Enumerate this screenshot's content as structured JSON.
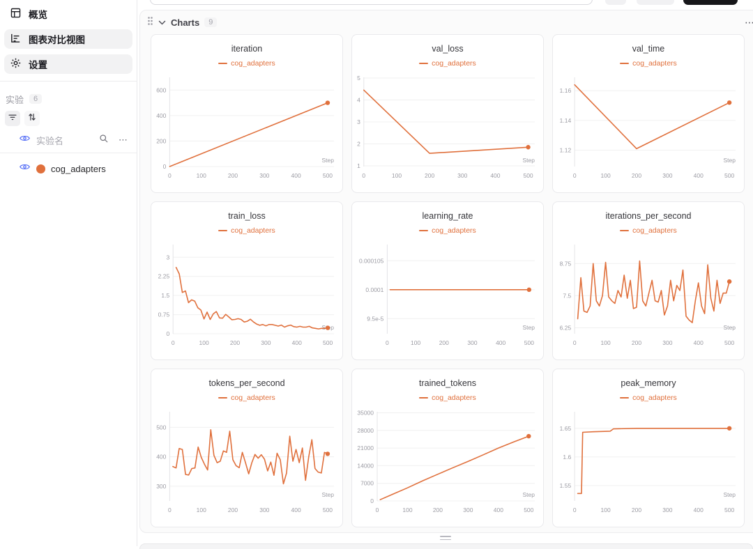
{
  "colors": {
    "accent_orange": "#E0703C",
    "eye_blue": "#4E68F6",
    "grid_line": "#f0f0f0",
    "axis_line": "#e4e4e7"
  },
  "sidebar": {
    "nav_items": [
      {
        "label": "概览",
        "active": false
      },
      {
        "label": "图表对比视图",
        "active": true
      },
      {
        "label": "设置",
        "active": true
      }
    ],
    "experiments_label": "实验",
    "experiments_count": "6",
    "name_column_label": "实验名",
    "experiments": [
      {
        "name": "cog_adapters",
        "color": "#E0703C"
      }
    ]
  },
  "main": {
    "charts_section": {
      "title": "Charts",
      "count": "9",
      "more_label": "⋯"
    }
  },
  "chart_data": [
    {
      "type": "line",
      "title": "iteration",
      "legend": "cog_adapters",
      "series_color": "#E0703C",
      "xlabel": "Step",
      "xticks": [
        0,
        100,
        200,
        300,
        400,
        500
      ],
      "xlim": [
        0,
        520
      ],
      "yticks": [
        0,
        200,
        400,
        600
      ],
      "ytick_labels": [
        "0",
        "200",
        "400",
        "600"
      ],
      "ylim": [
        0,
        700
      ],
      "x": [
        0,
        500
      ],
      "y": [
        0,
        500
      ]
    },
    {
      "type": "line",
      "title": "val_loss",
      "legend": "cog_adapters",
      "series_color": "#E0703C",
      "xlabel": "Step",
      "xticks": [
        0,
        100,
        200,
        300,
        400,
        500
      ],
      "xlim": [
        0,
        520
      ],
      "yticks": [
        1,
        2,
        3,
        4,
        5
      ],
      "ytick_labels": [
        "1",
        "2",
        "3",
        "4",
        "5"
      ],
      "ylim": [
        0.97,
        5.03
      ],
      "x": [
        0,
        200,
        500
      ],
      "y": [
        4.45,
        1.57,
        1.85
      ]
    },
    {
      "type": "line",
      "title": "val_time",
      "legend": "cog_adapters",
      "series_color": "#E0703C",
      "xlabel": "Step",
      "xticks": [
        0,
        100,
        200,
        300,
        400,
        500
      ],
      "xlim": [
        0,
        520
      ],
      "yticks": [
        1.12,
        1.14,
        1.16
      ],
      "ytick_labels": [
        "1.12",
        "1.14",
        "1.16"
      ],
      "ylim": [
        1.109,
        1.169
      ],
      "x": [
        0,
        200,
        500
      ],
      "y": [
        1.164,
        1.121,
        1.152
      ]
    },
    {
      "type": "line",
      "title": "train_loss",
      "legend": "cog_adapters",
      "series_color": "#E0703C",
      "xlabel": "Step",
      "xticks": [
        0,
        100,
        200,
        300,
        400,
        500
      ],
      "xlim": [
        0,
        520
      ],
      "yticks": [
        0,
        0.75,
        1.5,
        2.25,
        3
      ],
      "ytick_labels": [
        "0",
        "0.75",
        "1.5",
        "2.25",
        "3"
      ],
      "ylim": [
        0,
        3.5
      ],
      "x": [
        10,
        20,
        30,
        40,
        50,
        60,
        70,
        80,
        90,
        100,
        110,
        120,
        130,
        140,
        150,
        160,
        170,
        180,
        190,
        200,
        210,
        220,
        230,
        240,
        250,
        260,
        270,
        280,
        290,
        300,
        310,
        320,
        330,
        340,
        350,
        360,
        370,
        380,
        390,
        400,
        410,
        420,
        430,
        440,
        450,
        460,
        470,
        480,
        490,
        500
      ],
      "y": [
        2.6,
        2.35,
        1.62,
        1.68,
        1.22,
        1.33,
        1.28,
        1.02,
        0.93,
        0.58,
        0.85,
        0.56,
        0.78,
        0.87,
        0.62,
        0.61,
        0.76,
        0.66,
        0.55,
        0.56,
        0.59,
        0.56,
        0.46,
        0.49,
        0.57,
        0.46,
        0.38,
        0.33,
        0.36,
        0.31,
        0.36,
        0.36,
        0.33,
        0.3,
        0.34,
        0.26,
        0.31,
        0.34,
        0.28,
        0.26,
        0.29,
        0.26,
        0.26,
        0.29,
        0.23,
        0.21,
        0.19,
        0.21,
        0.21,
        0.23
      ]
    },
    {
      "type": "line",
      "title": "learning_rate",
      "legend": "cog_adapters",
      "series_color": "#E0703C",
      "xlabel": "Step",
      "xticks": [
        0,
        100,
        200,
        300,
        400,
        500
      ],
      "xlim": [
        0,
        520
      ],
      "yticks": [
        9.5e-05,
        0.0001,
        0.000105
      ],
      "ytick_labels": [
        "9.5e-5",
        "0.0001",
        "0.000105"
      ],
      "ylim": [
        9.24e-05,
        0.0001078
      ],
      "x": [
        10,
        500
      ],
      "y": [
        0.0001,
        0.0001
      ]
    },
    {
      "type": "line",
      "title": "iterations_per_second",
      "legend": "cog_adapters",
      "series_color": "#E0703C",
      "xlabel": "Step",
      "xticks": [
        0,
        100,
        200,
        300,
        400,
        500
      ],
      "xlim": [
        0,
        520
      ],
      "yticks": [
        6.25,
        7.5,
        8.75
      ],
      "ytick_labels": [
        "6.25",
        "7.5",
        "8.75"
      ],
      "ylim": [
        6.02,
        9.49
      ],
      "x": [
        10,
        20,
        30,
        40,
        50,
        60,
        70,
        80,
        90,
        100,
        110,
        120,
        130,
        140,
        150,
        160,
        170,
        180,
        190,
        200,
        210,
        220,
        230,
        240,
        250,
        260,
        270,
        280,
        290,
        300,
        310,
        320,
        330,
        340,
        350,
        360,
        370,
        380,
        390,
        400,
        410,
        420,
        430,
        440,
        450,
        460,
        470,
        480,
        490,
        500
      ],
      "y": [
        6.6,
        8.2,
        6.9,
        6.85,
        7.1,
        8.75,
        7.3,
        7.1,
        7.5,
        8.8,
        7.45,
        7.3,
        7.2,
        7.7,
        7.45,
        8.3,
        7.4,
        8.1,
        7.0,
        7.05,
        8.85,
        7.3,
        7.1,
        7.6,
        8.1,
        7.3,
        7.25,
        7.7,
        6.75,
        7.1,
        8.1,
        7.3,
        7.9,
        7.7,
        8.5,
        6.7,
        6.55,
        6.45,
        7.3,
        8.0,
        7.1,
        6.8,
        8.7,
        7.4,
        6.9,
        8.1,
        7.2,
        7.6,
        7.6,
        8.05
      ]
    },
    {
      "type": "line",
      "title": "tokens_per_second",
      "legend": "cog_adapters",
      "series_color": "#E0703C",
      "xlabel": "Step",
      "xticks": [
        0,
        100,
        200,
        300,
        400,
        500
      ],
      "xlim": [
        0,
        520
      ],
      "yticks": [
        300,
        400,
        500
      ],
      "ytick_labels": [
        "300",
        "400",
        "500"
      ],
      "ylim": [
        250,
        553
      ],
      "x": [
        10,
        20,
        30,
        40,
        50,
        60,
        70,
        80,
        90,
        100,
        110,
        120,
        130,
        140,
        150,
        160,
        170,
        180,
        190,
        200,
        210,
        220,
        230,
        240,
        250,
        260,
        270,
        280,
        290,
        300,
        310,
        320,
        330,
        340,
        350,
        360,
        370,
        380,
        390,
        400,
        410,
        420,
        430,
        440,
        450,
        460,
        470,
        480,
        490,
        500
      ],
      "y": [
        367,
        362,
        428,
        425,
        340,
        338,
        360,
        362,
        433,
        398,
        375,
        355,
        492,
        405,
        380,
        385,
        420,
        415,
        487,
        390,
        370,
        363,
        415,
        380,
        342,
        380,
        408,
        395,
        407,
        392,
        352,
        382,
        337,
        412,
        390,
        308,
        345,
        470,
        385,
        425,
        380,
        430,
        320,
        400,
        458,
        360,
        348,
        345,
        415,
        410
      ]
    },
    {
      "type": "line",
      "title": "trained_tokens",
      "legend": "cog_adapters",
      "series_color": "#E0703C",
      "xlabel": "Step",
      "xticks": [
        0,
        100,
        200,
        300,
        400,
        500
      ],
      "xlim": [
        0,
        520
      ],
      "yticks": [
        0,
        7000,
        14000,
        21000,
        28000,
        35000
      ],
      "ytick_labels": [
        "0",
        "7000",
        "14000",
        "21000",
        "28000",
        "35000"
      ],
      "ylim": [
        0,
        35400
      ],
      "x": [
        10,
        50,
        100,
        150,
        200,
        250,
        300,
        350,
        400,
        450,
        500
      ],
      "y": [
        500,
        2600,
        5200,
        8000,
        10600,
        13200,
        15700,
        18300,
        21000,
        23400,
        25700
      ]
    },
    {
      "type": "line",
      "title": "peak_memory",
      "legend": "cog_adapters",
      "series_color": "#E0703C",
      "xlabel": "Step",
      "xticks": [
        0,
        100,
        200,
        300,
        400,
        500
      ],
      "xlim": [
        0,
        520
      ],
      "yticks": [
        1.55,
        1.6,
        1.65
      ],
      "ytick_labels": [
        "1.55",
        "1.6",
        "1.65"
      ],
      "ylim": [
        1.523,
        1.679
      ],
      "x": [
        10,
        22,
        26,
        60,
        115,
        125,
        200,
        300,
        400,
        500
      ],
      "y": [
        1.536,
        1.536,
        1.643,
        1.644,
        1.645,
        1.649,
        1.65,
        1.65,
        1.65,
        1.65
      ]
    }
  ]
}
